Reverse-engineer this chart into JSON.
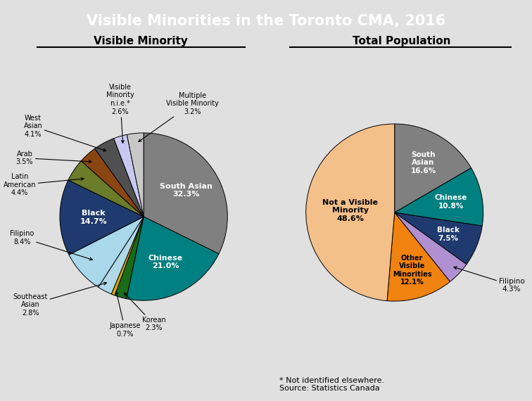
{
  "title": "Visible Minorities in the Toronto CMA, 2016",
  "title_bg": "#1a3a5c",
  "bg_color": "#e0e0e0",
  "subtitle1": "Visible Minority",
  "subtitle2": "Total Population",
  "footnote": "* Not identified elsewhere.\nSource: Statistics Canada",
  "pie1_labels": [
    "South Asian",
    "Chinese",
    "Korean",
    "Japanese",
    "Southeast Asian",
    "Filipino",
    "Black",
    "Latin American",
    "Arab",
    "West Asian",
    "Visible Minority\nn.i.e.*",
    "Multiple\nVisible Minority"
  ],
  "pie1_values": [
    32.3,
    21.0,
    2.3,
    0.7,
    2.8,
    8.4,
    14.7,
    4.4,
    3.5,
    4.1,
    2.6,
    3.2
  ],
  "pie1_colors": [
    "#808080",
    "#008080",
    "#1a6b1a",
    "#d4a800",
    "#b0d8e8",
    "#a8d8ea",
    "#1f3a6e",
    "#6b7c2a",
    "#8b4513",
    "#505050",
    "#c8c8f0",
    "#c8c8c8"
  ],
  "pie1_text_colors": [
    "white",
    "white",
    "white",
    "black",
    "black",
    "black",
    "white",
    "black",
    "white",
    "white",
    "black",
    "black"
  ],
  "pie1_startangle": 90,
  "pie2_labels": [
    "South Asian",
    "Chinese",
    "Black",
    "Filipino",
    "Other\nVisible\nMinorities",
    "Not a Visible\nMinority"
  ],
  "pie2_values": [
    16.6,
    10.8,
    7.5,
    4.3,
    12.1,
    48.6
  ],
  "pie2_colors": [
    "#808080",
    "#008080",
    "#1f3a6e",
    "#b090d0",
    "#f0820f",
    "#f4c08a"
  ],
  "pie2_text_colors": [
    "white",
    "white",
    "white",
    "black",
    "black",
    "black"
  ],
  "pie2_startangle": 90
}
